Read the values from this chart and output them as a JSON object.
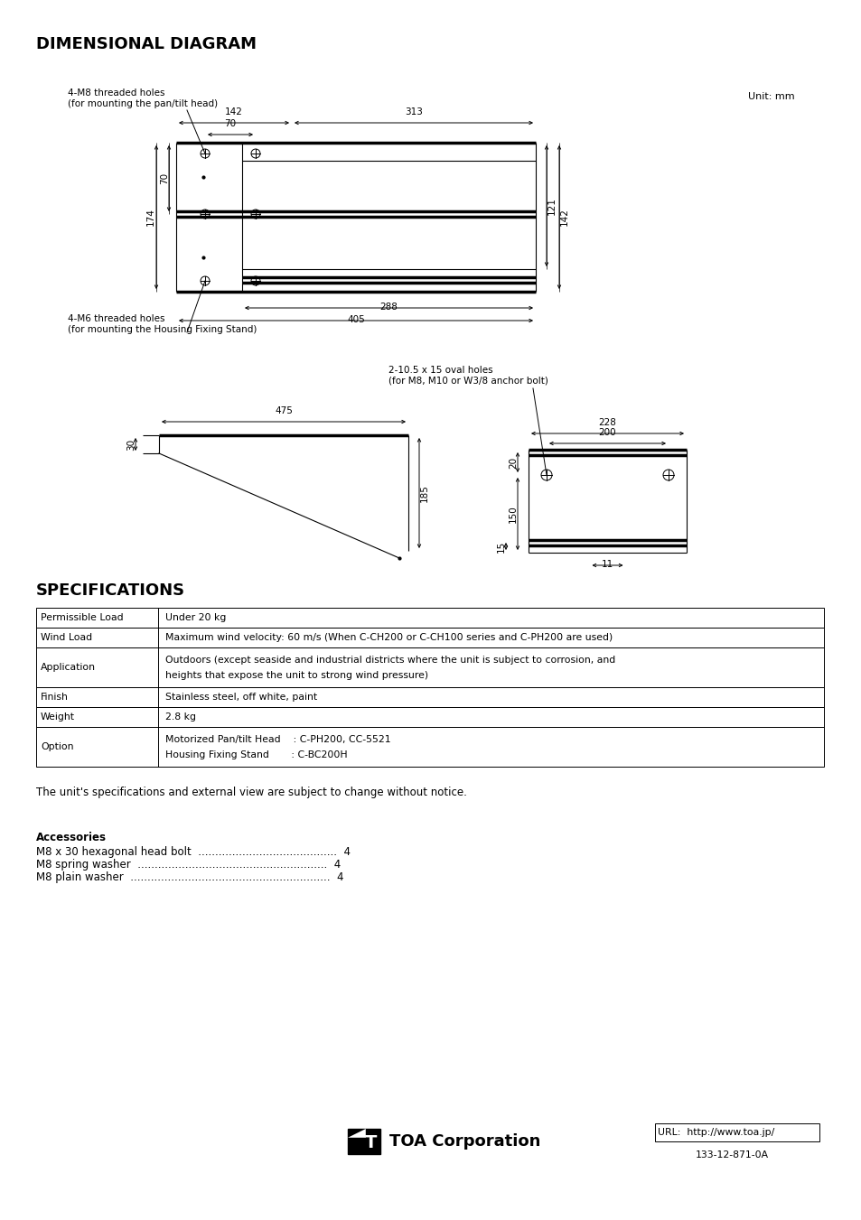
{
  "title_diagram": "DIMENSIONAL DIAGRAM",
  "title_specs": "SPECIFICATIONS",
  "unit_label": "Unit: mm",
  "note_m8_line1": "4-M8 threaded holes",
  "note_m8_line2": "(for mounting the pan/tilt head)",
  "note_m6_line1": "4-M6 threaded holes",
  "note_m6_line2": "(for mounting the Housing Fixing Stand)",
  "note_oval_line1": "2-10.5 x 15 oval holes",
  "note_oval_line2": "(for M8, M10 or W3/8 anchor bolt)",
  "spec_rows": [
    [
      "Permissible Load",
      "Under 20 kg",
      false
    ],
    [
      "Wind Load",
      "Maximum wind velocity: 60 m/s (When C-CH200 or C-CH100 series and C-PH200 are used)",
      false
    ],
    [
      "Application",
      "Outdoors (except seaside and industrial districts where the unit is subject to corrosion, and",
      true
    ],
    [
      "Finish",
      "Stainless steel, off white, paint",
      false
    ],
    [
      "Weight",
      "2.8 kg",
      false
    ],
    [
      "Option",
      "Motorized Pan/tilt Head    : C-PH200, CC-5521",
      true
    ]
  ],
  "spec_row2_line2": "heights that expose the unit to strong wind pressure)",
  "spec_row5_line2": "Housing Fixing Stand       : C-BC200H",
  "notice_text": "The unit's specifications and external view are subject to change without notice.",
  "accessories_title": "Accessories",
  "accessories": [
    "M8 x 30 hexagonal head bolt  .........................................  4",
    "M8 spring washer  ........................................................  4",
    "M8 plain washer  ...........................................................  4"
  ],
  "logo_url": "URL:  http://www.toa.jp/",
  "logo_code": "133-12-871-0A",
  "bg_color": "#ffffff",
  "lc": "#000000"
}
